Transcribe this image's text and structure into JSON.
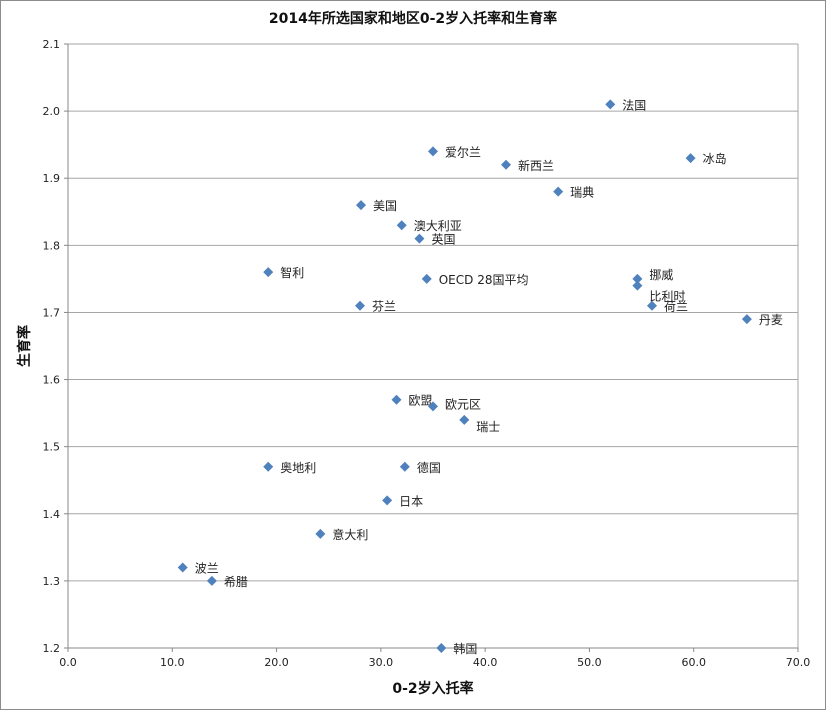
{
  "chart_data": {
    "type": "scatter",
    "title": "2014年所选国家和地区0-2岁入托率和生育率",
    "xlabel": "0-2岁入托率",
    "ylabel": "生育率",
    "xlim": [
      0,
      70
    ],
    "ylim": [
      1.2,
      2.1
    ],
    "xticks": [
      "0.0",
      "10.0",
      "20.0",
      "30.0",
      "40.0",
      "50.0",
      "60.0",
      "70.0"
    ],
    "yticks": [
      "1.2",
      "1.3",
      "1.4",
      "1.5",
      "1.6",
      "1.7",
      "1.8",
      "1.9",
      "2.0",
      "2.1"
    ],
    "grid": "horizontal",
    "marker_color": "#4F81BD",
    "points": [
      {
        "label": "法国",
        "x": 52.0,
        "y": 2.01
      },
      {
        "label": "冰岛",
        "x": 59.7,
        "y": 1.93
      },
      {
        "label": "爱尔兰",
        "x": 35.0,
        "y": 1.94
      },
      {
        "label": "新西兰",
        "x": 42.0,
        "y": 1.92
      },
      {
        "label": "瑞典",
        "x": 47.0,
        "y": 1.88
      },
      {
        "label": "美国",
        "x": 28.1,
        "y": 1.86
      },
      {
        "label": "澳大利亚",
        "x": 32.0,
        "y": 1.83
      },
      {
        "label": "英国",
        "x": 33.7,
        "y": 1.81
      },
      {
        "label": "智利",
        "x": 19.2,
        "y": 1.76
      },
      {
        "label": "OECD 28国平均",
        "x": 34.4,
        "y": 1.75
      },
      {
        "label": "挪威",
        "x": 54.6,
        "y": 1.75
      },
      {
        "label": "比利时",
        "x": 54.6,
        "y": 1.74
      },
      {
        "label": "芬兰",
        "x": 28.0,
        "y": 1.71
      },
      {
        "label": "荷兰",
        "x": 56.0,
        "y": 1.71
      },
      {
        "label": "丹麦",
        "x": 65.1,
        "y": 1.69
      },
      {
        "label": "欧盟",
        "x": 31.5,
        "y": 1.57
      },
      {
        "label": "欧元区",
        "x": 35.0,
        "y": 1.56
      },
      {
        "label": "瑞士",
        "x": 38.0,
        "y": 1.54
      },
      {
        "label": "奥地利",
        "x": 19.2,
        "y": 1.47
      },
      {
        "label": "德国",
        "x": 32.3,
        "y": 1.47
      },
      {
        "label": "日本",
        "x": 30.6,
        "y": 1.42
      },
      {
        "label": "意大利",
        "x": 24.2,
        "y": 1.37
      },
      {
        "label": "波兰",
        "x": 11.0,
        "y": 1.32
      },
      {
        "label": "希腊",
        "x": 13.8,
        "y": 1.3
      },
      {
        "label": "韩国",
        "x": 35.8,
        "y": 1.2
      }
    ]
  }
}
